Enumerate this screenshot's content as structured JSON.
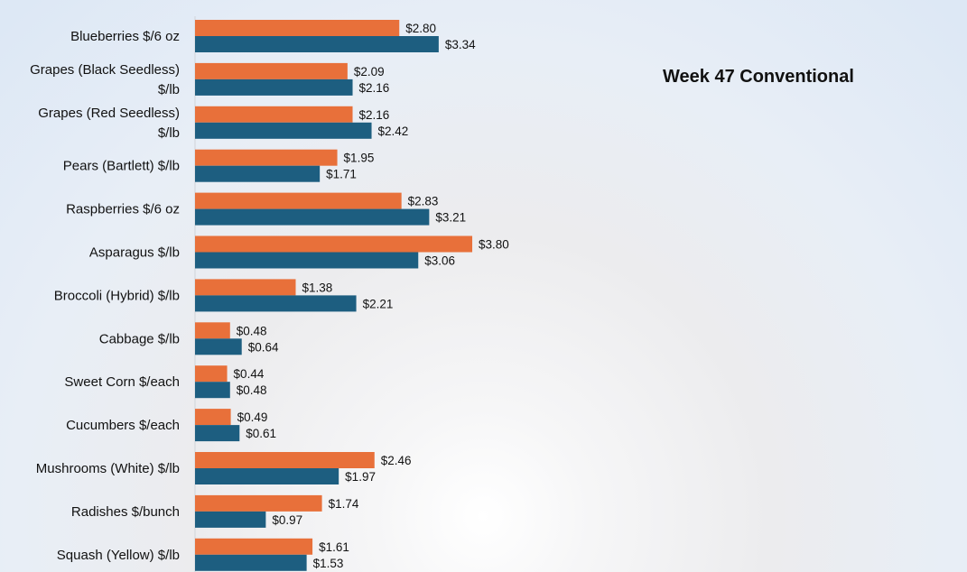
{
  "chart_data": {
    "type": "bar",
    "orientation": "horizontal",
    "title": "Week 47 Conventional",
    "xlabel": "",
    "ylabel": "",
    "xlim": [
      0,
      4.0
    ],
    "categories": [
      "Blueberries $/6 oz",
      "Grapes (Black Seedless) $/lb",
      "Grapes (Red Seedless) $/lb",
      "Pears (Bartlett) $/lb",
      "Raspberries $/6 oz",
      "Asparagus $/lb",
      "Broccoli (Hybrid) $/lb",
      "Cabbage $/lb",
      "Sweet Corn $/each",
      "Cucumbers $/each",
      "Mushrooms (White) $/lb",
      "Radishes $/bunch",
      "Squash (Yellow) $/lb"
    ],
    "series": [
      {
        "name": "series-orange",
        "color": "#e8703a",
        "values": [
          2.8,
          2.09,
          2.16,
          1.95,
          2.83,
          3.8,
          1.38,
          0.48,
          0.44,
          0.49,
          2.46,
          1.74,
          1.61
        ],
        "labels": [
          "$2.80",
          "$2.09",
          "$2.16",
          "$1.95",
          "$2.83",
          "$3.80",
          "$1.38",
          "$0.48",
          "$0.44",
          "$0.49",
          "$2.46",
          "$1.74",
          "$1.61"
        ]
      },
      {
        "name": "series-blue",
        "color": "#1d5e80",
        "values": [
          3.34,
          2.16,
          2.42,
          1.71,
          3.21,
          3.06,
          2.21,
          0.64,
          0.48,
          0.61,
          1.97,
          0.97,
          1.53
        ],
        "labels": [
          "$3.34",
          "$2.16",
          "$2.42",
          "$1.71",
          "$3.21",
          "$3.06",
          "$2.21",
          "$0.64",
          "$0.48",
          "$0.61",
          "$1.97",
          "$0.97",
          "$1.53"
        ]
      }
    ],
    "grid": false,
    "legend": "none"
  }
}
